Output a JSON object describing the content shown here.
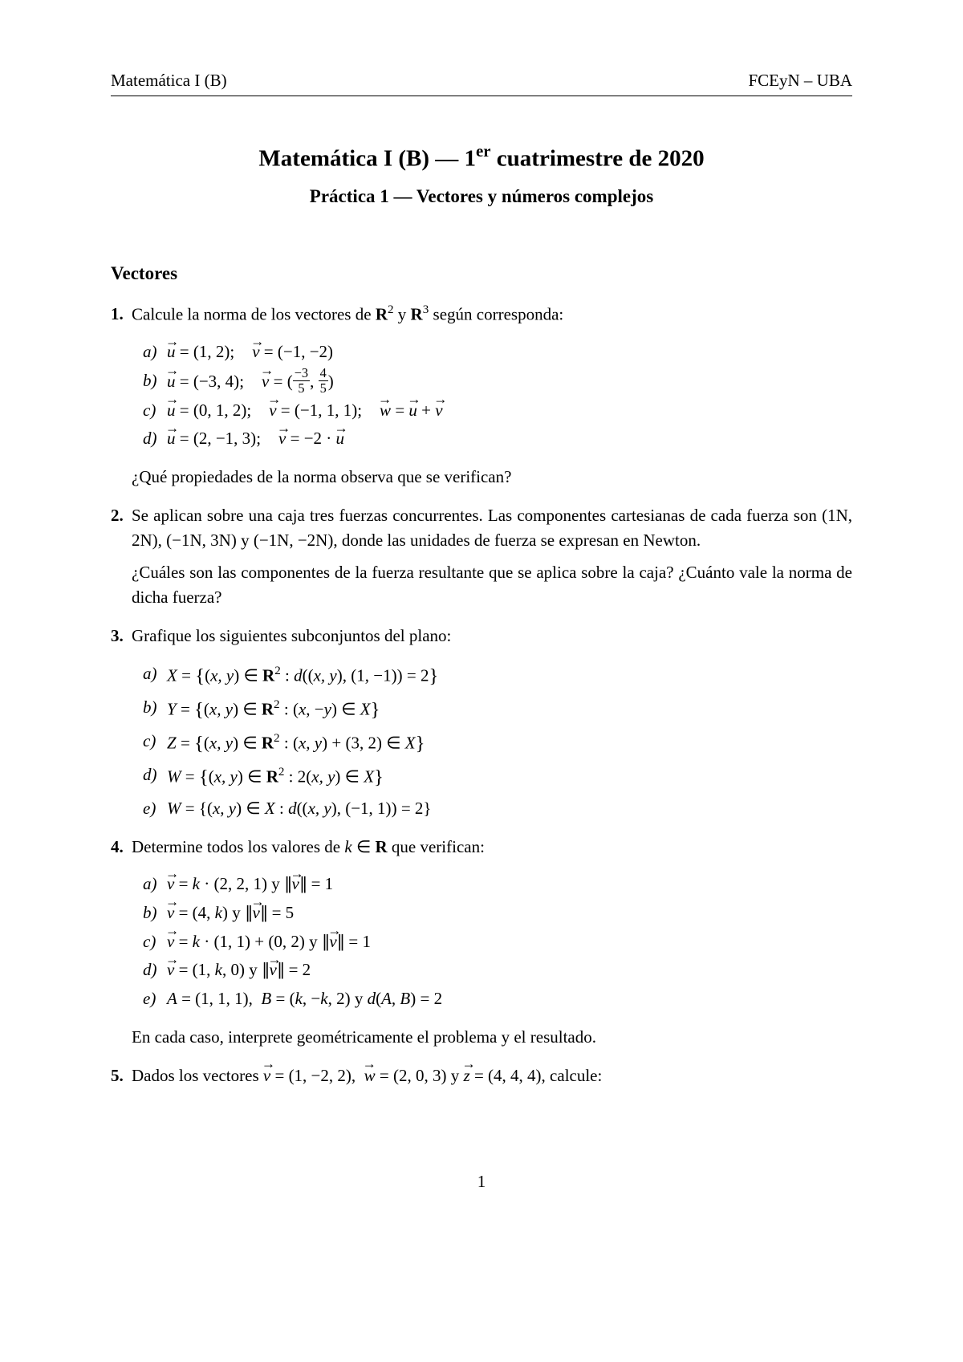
{
  "header": {
    "left": "Matemática I (B)",
    "right": "FCEyN – UBA"
  },
  "title_parts": {
    "pre": "Matemática I (B) — 1",
    "sup": "er",
    "post": " cuatrimestre de 2020"
  },
  "subtitle": "Práctica 1 — Vectores y números complejos",
  "section": "Vectores",
  "p1": {
    "num": "1.",
    "text_pre": "Calcule la norma de los vectores de ",
    "text_mid": " y ",
    "text_post": " según corresponda:",
    "items": {
      "a_lab": "a)",
      "b_lab": "b)",
      "c_lab": "c)",
      "d_lab": "d)"
    },
    "followup": "¿Qué propiedades de la norma observa que se verifican?"
  },
  "p2": {
    "num": "2.",
    "text": "Se aplican sobre una caja tres fuerzas concurrentes. Las componentes cartesianas de cada fuerza son (1N, 2N), (−1N, 3N) y (−1N, −2N), donde las unidades de fuerza se expresan en Newton.",
    "followup": "¿Cuáles son las componentes de la fuerza resultante que se aplica sobre la caja? ¿Cuánto vale la norma de dicha fuerza?"
  },
  "p3": {
    "num": "3.",
    "text": "Grafique los siguientes subconjuntos del plano:",
    "labs": {
      "a": "a)",
      "b": "b)",
      "c": "c)",
      "d": "d)",
      "e": "e)"
    }
  },
  "p4": {
    "num": "4.",
    "text_pre": "Determine todos los valores de ",
    "text_post": " que verifican:",
    "labs": {
      "a": "a)",
      "b": "b)",
      "c": "c)",
      "d": "d)",
      "e": "e)"
    },
    "followup": "En cada caso, interprete geométricamente el problema y el resultado."
  },
  "p5": {
    "num": "5.",
    "text_pre": "Dados los vectores ",
    "text_post": ", calcule:"
  },
  "page_number": "1",
  "math_strings": {
    "R": "R",
    "eq": " = ",
    "in": " ∈ ",
    "u": "u",
    "v": "v",
    "w": "w",
    "z": "z",
    "k": "k",
    "N": "N",
    "X": "X",
    "Y": "Y",
    "Z": "Z",
    "W": "W",
    "A": "A",
    "B": "B",
    "y_word": " y ",
    "d": "d",
    "xy": "x, y",
    "minus": "−",
    "dot": " · ",
    "plus": " + ",
    "semicolon": ";",
    "colon": " : ",
    "comma": ", ",
    "lp": "(",
    "rp": ")",
    "v1a_u": "(1, 2)",
    "v1a_v": "(−1, −2)",
    "v1b_u": "(−3, 4)",
    "frac_n1": "−3",
    "frac_d1": "5",
    "frac_n2": "4",
    "frac_d2": "5",
    "v1c_u": "(0, 1, 2)",
    "v1c_v": "(−1, 1, 1)",
    "v1d_u": "(2, −1, 3)",
    "v1d_v": "−2 · ",
    "two": "2",
    "three": "3",
    "five": "5",
    "one": "1",
    "p3a_pt": "(1, −1)",
    "p3c_pt": "(3, 2)",
    "p3e_pt": "(−1, 1)",
    "p4a_vec": "(2, 2, 1)",
    "p4b_vec": "(4, k)",
    "p4c_v1": "(1, 1)",
    "p4c_v2": "(0, 2)",
    "p4d_vec": "(1, k, 0)",
    "p4e_A": "(1, 1, 1)",
    "p4e_B": "(k, −k, 2)",
    "p5_v": "(1, −2, 2)",
    "p5_w": "(2, 0, 3)",
    "p5_z": "(4, 4, 4)",
    "norm_bar": "∥"
  }
}
